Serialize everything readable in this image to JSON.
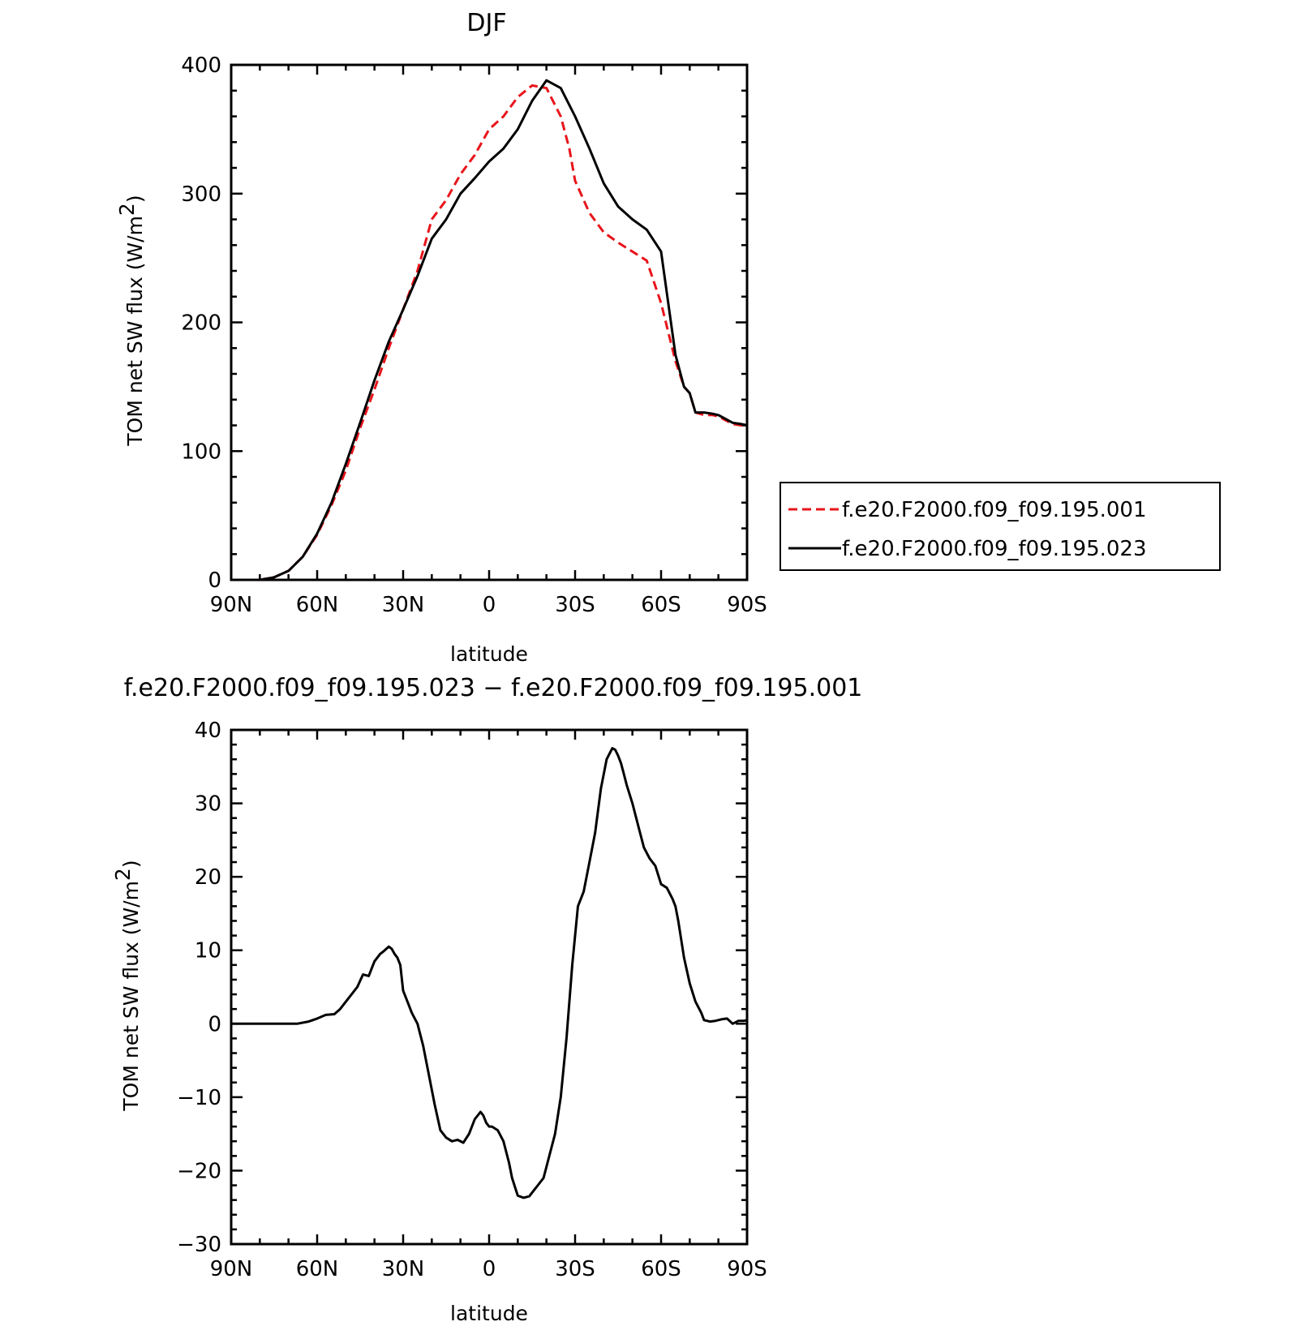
{
  "chart_data": [
    {
      "type": "line",
      "title": "DJF",
      "xlabel": "latitude",
      "ylabel_main": "TOM net SW flux (W/m",
      "ylabel_sup": "2",
      "ylabel_close": ")",
      "xlim": [
        90,
        -90
      ],
      "ylim": [
        0,
        400
      ],
      "x_ticks": [
        90,
        60,
        30,
        0,
        -30,
        -60,
        -90
      ],
      "x_tick_labels": [
        "90N",
        "60N",
        "30N",
        "0",
        "30S",
        "60S",
        "90S"
      ],
      "y_ticks": [
        0,
        100,
        200,
        300,
        400
      ],
      "y_tick_labels": [
        "0",
        "100",
        "200",
        "300",
        "400"
      ],
      "legend_position": "right, outside plot",
      "series": [
        {
          "name": "f.e20.F2000.f09_f09.195.001",
          "color": "#e8141b",
          "style": "dashed",
          "x": [
            90,
            85,
            80,
            75,
            70,
            65,
            60,
            55,
            50,
            45,
            40,
            35,
            30,
            25,
            20,
            15,
            10,
            5,
            0,
            -5,
            -10,
            -15,
            -20,
            -25,
            -28,
            -30,
            -35,
            -40,
            -45,
            -50,
            -55,
            -60,
            -65,
            -68,
            -70,
            -72,
            -75,
            -78,
            -80,
            -85,
            -88,
            -90
          ],
          "values": [
            0,
            0,
            0,
            2,
            7,
            18,
            35,
            58,
            85,
            118,
            148,
            180,
            210,
            240,
            280,
            295,
            315,
            330,
            350,
            360,
            375,
            384,
            382,
            360,
            335,
            310,
            285,
            270,
            262,
            255,
            248,
            215,
            170,
            150,
            145,
            130,
            128,
            128,
            127,
            121,
            120,
            119
          ]
        },
        {
          "name": "f.e20.F2000.f09_f09.195.023",
          "color": "#000000",
          "style": "solid",
          "x": [
            90,
            85,
            80,
            75,
            70,
            65,
            60,
            55,
            50,
            45,
            40,
            35,
            30,
            25,
            20,
            15,
            10,
            5,
            0,
            -5,
            -10,
            -15,
            -20,
            -25,
            -30,
            -35,
            -40,
            -45,
            -50,
            -55,
            -60,
            -65,
            -68,
            -70,
            -72,
            -75,
            -78,
            -80,
            -85,
            -88,
            -90
          ],
          "values": [
            0,
            0,
            0,
            2,
            7,
            18,
            36,
            60,
            90,
            122,
            155,
            185,
            210,
            236,
            265,
            280,
            300,
            312,
            325,
            335,
            350,
            372,
            388,
            382,
            360,
            335,
            308,
            290,
            280,
            272,
            255,
            175,
            150,
            145,
            130,
            130,
            129,
            128,
            122,
            121,
            120
          ]
        }
      ]
    },
    {
      "type": "line",
      "title": "f.e20.F2000.f09_f09.195.023 − f.e20.F2000.f09_f09.195.001",
      "xlabel": "latitude",
      "ylabel_main": "TOM net SW flux (W/m",
      "ylabel_sup": "2",
      "ylabel_close": ")",
      "xlim": [
        90,
        -90
      ],
      "ylim": [
        -30,
        40
      ],
      "x_ticks": [
        90,
        60,
        30,
        0,
        -30,
        -60,
        -90
      ],
      "x_tick_labels": [
        "90N",
        "60N",
        "30N",
        "0",
        "30S",
        "60S",
        "90S"
      ],
      "y_ticks": [
        -30,
        -20,
        -10,
        0,
        10,
        20,
        30,
        40
      ],
      "y_tick_labels": [
        "−30",
        "−20",
        "−10",
        "0",
        "10",
        "20",
        "30",
        "40"
      ],
      "series": [
        {
          "name": "",
          "color": "#000000",
          "style": "solid",
          "x": [
            90,
            80,
            70,
            67,
            63,
            60,
            57,
            54,
            52,
            49,
            46,
            44,
            42,
            41,
            40,
            38,
            37,
            35,
            34,
            33,
            32,
            31,
            30,
            28,
            27,
            25,
            23,
            21,
            19,
            17,
            15,
            13,
            11,
            9,
            7,
            5,
            4,
            3,
            2,
            1,
            0,
            -1,
            -3,
            -5,
            -7,
            -8,
            -10,
            -12,
            -14,
            -16,
            -17,
            -19,
            -21,
            -23,
            -25,
            -27,
            -29,
            -31,
            -33,
            -35,
            -37,
            -39,
            -41,
            -43,
            -44,
            -45,
            -46,
            -47,
            -48,
            -50,
            -52,
            -54,
            -56,
            -58,
            -60,
            -62,
            -64,
            -65,
            -66,
            -68,
            -70,
            -72,
            -74,
            -75,
            -77,
            -79,
            -81,
            -83,
            -85,
            -87,
            -89,
            -90
          ],
          "values": [
            0,
            0,
            0,
            0,
            0.3,
            0.7,
            1.2,
            1.3,
            2,
            3.5,
            5,
            6.7,
            6.5,
            7.5,
            8.5,
            9.5,
            9.8,
            10.5,
            10.2,
            9.5,
            9,
            8,
            4.5,
            2.5,
            1.5,
            0,
            -3,
            -7,
            -11,
            -14.5,
            -15.5,
            -16,
            -15.8,
            -16.2,
            -15,
            -13,
            -12.5,
            -12,
            -12.5,
            -13.5,
            -14,
            -14,
            -14.5,
            -16,
            -19,
            -21,
            -23.4,
            -23.7,
            -23.5,
            -22.5,
            -22,
            -21,
            -18,
            -15,
            -10,
            -2,
            8,
            16,
            18,
            22,
            26,
            32,
            36,
            37.5,
            37.3,
            36.5,
            35.5,
            34,
            32.5,
            30,
            27,
            24,
            22.5,
            21.5,
            19,
            18.5,
            17,
            16,
            14,
            9,
            5.5,
            3,
            1.5,
            0.5,
            0.3,
            0.4,
            0.6,
            0.7,
            0,
            0.4,
            0.4,
            0.5
          ]
        }
      ]
    }
  ]
}
